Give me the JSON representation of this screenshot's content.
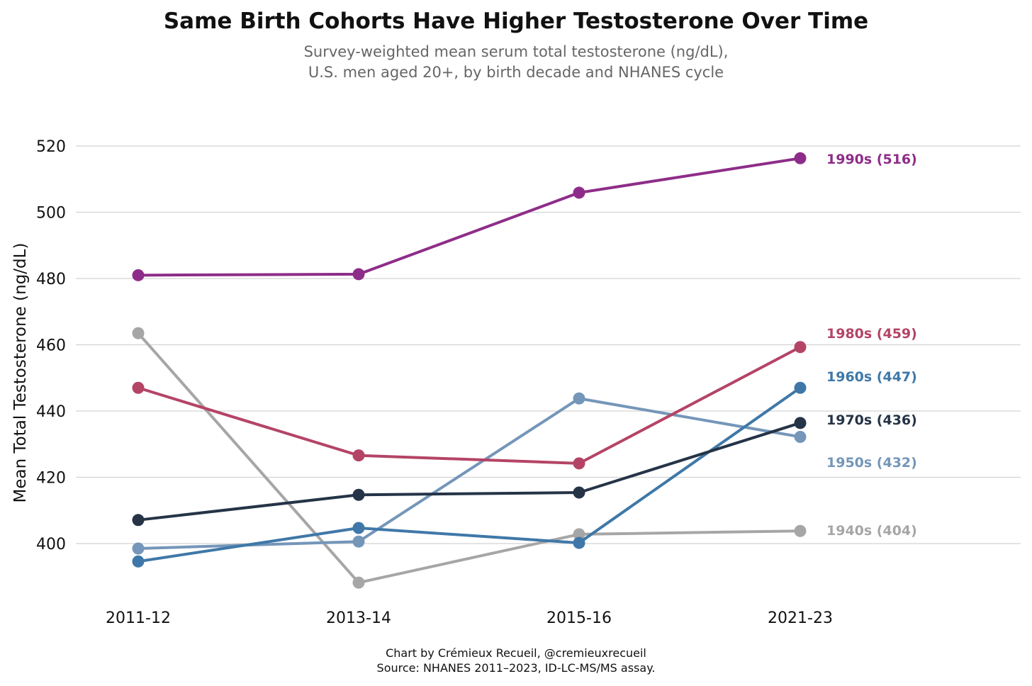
{
  "chart_data": {
    "type": "line",
    "title": "Same Birth Cohorts Have Higher Testosterone Over Time",
    "subtitle": [
      "Survey-weighted mean serum total testosterone (ng/dL),",
      "U.S. men aged 20+, by birth decade and NHANES cycle"
    ],
    "xlabel": "",
    "ylabel": "Mean Total Testosterone (ng/dL)",
    "categories": [
      "2011-12",
      "2013-14",
      "2015-16",
      "2021-23"
    ],
    "ylim": [
      388,
      520
    ],
    "yticks": [
      400,
      420,
      440,
      460,
      480,
      500,
      520
    ],
    "grid": "horizontal",
    "legend": "direct labels at right end of lines",
    "series": [
      {
        "name": "1940s",
        "label": "1940s (404)",
        "color": "#a6a6a6",
        "values": [
          463.5,
          388.2,
          402.8,
          403.8
        ]
      },
      {
        "name": "1950s",
        "label": "1950s (432)",
        "color": "#7496b9",
        "values": [
          398.5,
          400.6,
          443.8,
          432.2
        ]
      },
      {
        "name": "1960s",
        "label": "1960s (447)",
        "color": "#3f78a8",
        "values": [
          394.6,
          404.7,
          400.2,
          447.0
        ]
      },
      {
        "name": "1970s",
        "label": "1970s (436)",
        "color": "#253447",
        "values": [
          407.1,
          414.7,
          415.4,
          436.4
        ]
      },
      {
        "name": "1980s",
        "label": "1980s (459)",
        "color": "#b44466",
        "values": [
          447.0,
          426.6,
          424.2,
          459.3
        ]
      },
      {
        "name": "1990s",
        "label": "1990s (516)",
        "color": "#8e2d89",
        "values": [
          481.0,
          481.3,
          505.9,
          516.3
        ]
      }
    ]
  },
  "footer": {
    "credit": "Chart by Crémieux Recueil, @cremieuxrecueil",
    "source": "Source: NHANES 2011–2023, ID-LC-MS/MS assay."
  }
}
